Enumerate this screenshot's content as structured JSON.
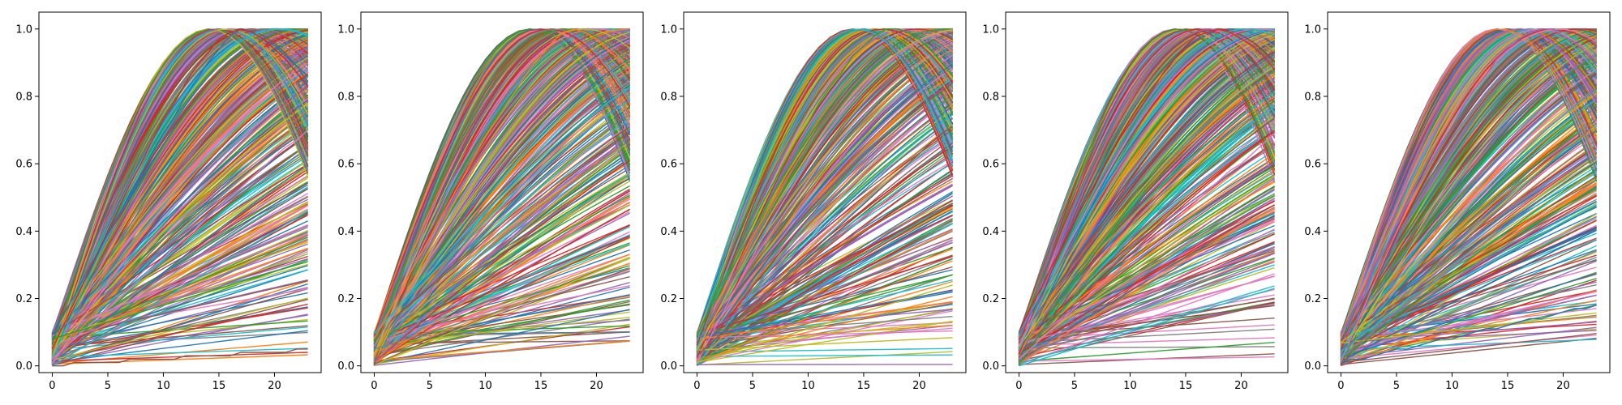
{
  "figure": {
    "background": "#ffffff"
  },
  "chart_data": [
    {
      "type": "line",
      "title": "",
      "xlabel": "",
      "ylabel": "",
      "xlim": [
        -1.2,
        24.2
      ],
      "ylim": [
        -0.02,
        1.05
      ],
      "xticks": [
        0,
        5,
        10,
        15,
        20
      ],
      "xtick_labels": [
        "0",
        "5",
        "10",
        "15",
        "20"
      ],
      "yticks": [
        0.0,
        0.2,
        0.4,
        0.6,
        0.8,
        1.0
      ],
      "ytick_labels": [
        "0.0",
        "0.2",
        "0.4",
        "0.6",
        "0.8",
        "1.0"
      ],
      "grid": false,
      "legend": "none",
      "x": [
        0,
        1,
        2,
        3,
        4,
        5,
        6,
        7,
        8,
        9,
        10,
        11,
        12,
        13,
        14,
        15,
        16,
        17,
        18,
        19,
        20,
        21,
        22,
        23
      ],
      "series_description": "hundreds of sine-shaped curves y = start + (1 - start) * sin(freq * x), start in [0, 0.1], freq in [0, 0.11]; curves passing their peak turn downward near x = 23",
      "series": [
        {
          "values": [
            0.09,
            0.15,
            0.21,
            0.27,
            0.33,
            0.39,
            0.45,
            0.51,
            0.57,
            0.63,
            0.69,
            0.74,
            0.8,
            0.85,
            0.9,
            0.94,
            0.98,
            1.0,
            0.99,
            0.97,
            0.95,
            0.92,
            0.89,
            0.86
          ]
        },
        {
          "values": [
            0.05,
            0.12,
            0.19,
            0.26,
            0.33,
            0.4,
            0.47,
            0.54,
            0.6,
            0.67,
            0.73,
            0.78,
            0.84,
            0.89,
            0.93,
            0.97,
            0.99,
            1.0,
            0.99,
            0.97,
            0.94,
            0.91,
            0.87,
            0.83
          ]
        },
        {
          "values": [
            0.02,
            0.05,
            0.08,
            0.11,
            0.14,
            0.17,
            0.2,
            0.23,
            0.26,
            0.29,
            0.32,
            0.35,
            0.38,
            0.41,
            0.44,
            0.47,
            0.5,
            0.53,
            0.56,
            0.59,
            0.62,
            0.65,
            0.67,
            0.7
          ]
        },
        {
          "values": [
            0.0,
            0.02,
            0.04,
            0.06,
            0.08,
            0.1,
            0.12,
            0.14,
            0.16,
            0.18,
            0.2,
            0.22,
            0.24,
            0.26,
            0.28,
            0.3,
            0.32,
            0.34,
            0.36,
            0.38,
            0.4,
            0.42,
            0.44,
            0.46
          ]
        },
        {
          "values": [
            0.08,
            0.09,
            0.1,
            0.11,
            0.12,
            0.13,
            0.14,
            0.15,
            0.16,
            0.17,
            0.18,
            0.19,
            0.2,
            0.21,
            0.22,
            0.23,
            0.24,
            0.25,
            0.26,
            0.27,
            0.28,
            0.29,
            0.3,
            0.31
          ]
        },
        {
          "values": [
            0.0,
            0.0,
            0.01,
            0.01,
            0.01,
            0.01,
            0.01,
            0.02,
            0.02,
            0.02,
            0.02,
            0.02,
            0.03,
            0.03,
            0.03,
            0.03,
            0.03,
            0.04,
            0.04,
            0.04,
            0.04,
            0.04,
            0.05,
            0.05
          ]
        }
      ]
    },
    {
      "type": "line",
      "title": "",
      "xlabel": "",
      "ylabel": "",
      "xlim": [
        -1.2,
        24.2
      ],
      "ylim": [
        -0.02,
        1.05
      ],
      "xticks": [
        0,
        5,
        10,
        15,
        20
      ],
      "xtick_labels": [
        "0",
        "5",
        "10",
        "15",
        "20"
      ],
      "yticks": [
        0.0,
        0.2,
        0.4,
        0.6,
        0.8,
        1.0
      ],
      "ytick_labels": [
        "0.0",
        "0.2",
        "0.4",
        "0.6",
        "0.8",
        "1.0"
      ],
      "grid": false,
      "legend": "none",
      "x": [
        0,
        1,
        2,
        3,
        4,
        5,
        6,
        7,
        8,
        9,
        10,
        11,
        12,
        13,
        14,
        15,
        16,
        17,
        18,
        19,
        20,
        21,
        22,
        23
      ],
      "series": [
        {
          "values": [
            0.08,
            0.14,
            0.2,
            0.26,
            0.32,
            0.38,
            0.44,
            0.5,
            0.56,
            0.62,
            0.68,
            0.73,
            0.78,
            0.83,
            0.88,
            0.92,
            0.96,
            0.99,
            1.0,
            0.99,
            0.97,
            0.94,
            0.91,
            0.88
          ]
        },
        {
          "values": [
            0.01,
            0.04,
            0.07,
            0.1,
            0.13,
            0.16,
            0.19,
            0.22,
            0.25,
            0.28,
            0.31,
            0.34,
            0.37,
            0.4,
            0.43,
            0.46,
            0.49,
            0.52,
            0.55,
            0.58,
            0.6,
            0.63,
            0.66,
            0.68
          ]
        },
        {
          "values": [
            0.05,
            0.06,
            0.07,
            0.08,
            0.09,
            0.1,
            0.11,
            0.12,
            0.13,
            0.14,
            0.15,
            0.16,
            0.17,
            0.18,
            0.19,
            0.2,
            0.21,
            0.22,
            0.23,
            0.24,
            0.25,
            0.26,
            0.27,
            0.28
          ]
        }
      ]
    },
    {
      "type": "line",
      "title": "",
      "xlabel": "",
      "ylabel": "",
      "xlim": [
        -1.2,
        24.2
      ],
      "ylim": [
        -0.02,
        1.05
      ],
      "xticks": [
        0,
        5,
        10,
        15,
        20
      ],
      "xtick_labels": [
        "0",
        "5",
        "10",
        "15",
        "20"
      ],
      "yticks": [
        0.0,
        0.2,
        0.4,
        0.6,
        0.8,
        1.0
      ],
      "ytick_labels": [
        "0.0",
        "0.2",
        "0.4",
        "0.6",
        "0.8",
        "1.0"
      ],
      "grid": false,
      "legend": "none",
      "x": [
        0,
        1,
        2,
        3,
        4,
        5,
        6,
        7,
        8,
        9,
        10,
        11,
        12,
        13,
        14,
        15,
        16,
        17,
        18,
        19,
        20,
        21,
        22,
        23
      ],
      "series": [
        {
          "values": [
            0.09,
            0.16,
            0.23,
            0.29,
            0.36,
            0.42,
            0.49,
            0.55,
            0.61,
            0.67,
            0.72,
            0.78,
            0.83,
            0.87,
            0.92,
            0.95,
            0.98,
            1.0,
            1.0,
            0.99,
            0.97,
            0.94,
            0.9,
            0.86
          ]
        },
        {
          "values": [
            0.03,
            0.06,
            0.09,
            0.12,
            0.15,
            0.18,
            0.21,
            0.24,
            0.27,
            0.3,
            0.33,
            0.36,
            0.39,
            0.42,
            0.45,
            0.48,
            0.51,
            0.54,
            0.57,
            0.6,
            0.63,
            0.66,
            0.69,
            0.71
          ]
        },
        {
          "values": [
            0.01,
            0.02,
            0.03,
            0.04,
            0.05,
            0.06,
            0.07,
            0.08,
            0.09,
            0.1,
            0.11,
            0.12,
            0.13,
            0.14,
            0.15,
            0.16,
            0.17,
            0.18,
            0.19,
            0.2,
            0.21,
            0.22,
            0.23,
            0.24
          ]
        }
      ]
    },
    {
      "type": "line",
      "title": "",
      "xlabel": "",
      "ylabel": "",
      "xlim": [
        -1.2,
        24.2
      ],
      "ylim": [
        -0.02,
        1.05
      ],
      "xticks": [
        0,
        5,
        10,
        15,
        20
      ],
      "xtick_labels": [
        "0",
        "5",
        "10",
        "15",
        "20"
      ],
      "yticks": [
        0.0,
        0.2,
        0.4,
        0.6,
        0.8,
        1.0
      ],
      "ytick_labels": [
        "0.0",
        "0.2",
        "0.4",
        "0.6",
        "0.8",
        "1.0"
      ],
      "grid": false,
      "legend": "none",
      "x": [
        0,
        1,
        2,
        3,
        4,
        5,
        6,
        7,
        8,
        9,
        10,
        11,
        12,
        13,
        14,
        15,
        16,
        17,
        18,
        19,
        20,
        21,
        22,
        23
      ],
      "series": [
        {
          "values": [
            0.1,
            0.17,
            0.23,
            0.3,
            0.36,
            0.43,
            0.49,
            0.55,
            0.61,
            0.67,
            0.72,
            0.77,
            0.82,
            0.87,
            0.91,
            0.95,
            0.98,
            0.99,
            1.0,
            0.99,
            0.97,
            0.95,
            0.92,
            0.88
          ]
        },
        {
          "values": [
            0.02,
            0.05,
            0.08,
            0.11,
            0.14,
            0.17,
            0.2,
            0.23,
            0.26,
            0.29,
            0.32,
            0.35,
            0.38,
            0.4,
            0.43,
            0.46,
            0.49,
            0.52,
            0.55,
            0.58,
            0.6,
            0.63,
            0.66,
            0.69
          ]
        },
        {
          "values": [
            0.0,
            0.01,
            0.02,
            0.03,
            0.04,
            0.05,
            0.06,
            0.07,
            0.08,
            0.09,
            0.1,
            0.11,
            0.12,
            0.13,
            0.14,
            0.15,
            0.16,
            0.17,
            0.18,
            0.19,
            0.2,
            0.21,
            0.22,
            0.23
          ]
        }
      ]
    },
    {
      "type": "line",
      "title": "",
      "xlabel": "",
      "ylabel": "",
      "xlim": [
        -1.2,
        24.2
      ],
      "ylim": [
        -0.02,
        1.05
      ],
      "xticks": [
        0,
        5,
        10,
        15,
        20
      ],
      "xtick_labels": [
        "0",
        "5",
        "10",
        "15",
        "20"
      ],
      "yticks": [
        0.0,
        0.2,
        0.4,
        0.6,
        0.8,
        1.0
      ],
      "ytick_labels": [
        "0.0",
        "0.2",
        "0.4",
        "0.6",
        "0.8",
        "1.0"
      ],
      "grid": false,
      "legend": "none",
      "x": [
        0,
        1,
        2,
        3,
        4,
        5,
        6,
        7,
        8,
        9,
        10,
        11,
        12,
        13,
        14,
        15,
        16,
        17,
        18,
        19,
        20,
        21,
        22,
        23
      ],
      "series": [
        {
          "values": [
            0.09,
            0.16,
            0.22,
            0.29,
            0.35,
            0.42,
            0.48,
            0.54,
            0.6,
            0.66,
            0.71,
            0.77,
            0.82,
            0.86,
            0.91,
            0.94,
            0.97,
            0.99,
            1.0,
            1.0,
            0.98,
            0.96,
            0.93,
            0.89
          ]
        },
        {
          "values": [
            0.04,
            0.07,
            0.1,
            0.13,
            0.16,
            0.19,
            0.22,
            0.25,
            0.28,
            0.31,
            0.34,
            0.37,
            0.4,
            0.43,
            0.46,
            0.49,
            0.52,
            0.55,
            0.58,
            0.61,
            0.64,
            0.66,
            0.69,
            0.72
          ]
        },
        {
          "values": [
            0.01,
            0.02,
            0.02,
            0.03,
            0.04,
            0.05,
            0.05,
            0.06,
            0.07,
            0.08,
            0.08,
            0.09,
            0.1,
            0.11,
            0.11,
            0.12,
            0.13,
            0.14,
            0.14,
            0.15,
            0.16,
            0.17,
            0.17,
            0.18
          ]
        }
      ]
    }
  ],
  "palette": [
    "#1f77b4",
    "#ff7f0e",
    "#2ca02c",
    "#d62728",
    "#9467bd",
    "#8c564b",
    "#e377c2",
    "#7f7f7f",
    "#bcbd22",
    "#17becf"
  ]
}
